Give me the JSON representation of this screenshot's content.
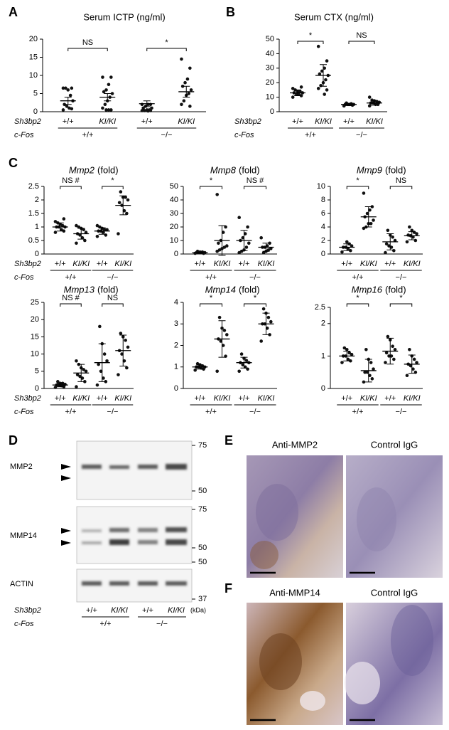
{
  "panel_labels": [
    "A",
    "B",
    "C",
    "D",
    "E",
    "F"
  ],
  "genotype": {
    "sh3bp2": "Sh3bp2",
    "c_fos": "c-Fos",
    "sh3bp2_groups": [
      "+/+",
      "KI/KI",
      "+/+",
      "KI/KI"
    ],
    "c_fos_groups": [
      "+/+",
      "−/−"
    ]
  },
  "chart_data": [
    {
      "type": "dot",
      "title": "Serum ICTP (ng/ml)",
      "ylim": [
        0,
        20
      ],
      "yticks": [
        0,
        5,
        10,
        15,
        20
      ],
      "significance": [
        "NS",
        "*"
      ],
      "groups": [
        {
          "values": [
            0.5,
            0.8,
            1,
            1.5,
            2,
            3,
            4.5,
            6,
            6.5,
            6.5,
            6.5
          ],
          "mean": 3,
          "error": 1
        },
        {
          "values": [
            9.5,
            9.5,
            7.5,
            6,
            5.5,
            5,
            4,
            3,
            2,
            1,
            0.5,
            0.5,
            0.5
          ],
          "mean": 4,
          "error": 1
        },
        {
          "values": [
            2,
            2,
            2,
            1.5,
            1,
            1,
            0.5,
            0.5,
            0.3,
            0.3,
            0.3,
            0.2
          ],
          "mean": 2.2,
          "error": 0.8
        },
        {
          "values": [
            14.5,
            12,
            9,
            8,
            7,
            6,
            5,
            4.5,
            3,
            2,
            1.5
          ],
          "mean": 5.5,
          "error": 1.5
        }
      ]
    },
    {
      "type": "dot",
      "title": "Serum CTX (ng/ml)",
      "ylim": [
        0,
        50
      ],
      "yticks": [
        0,
        10,
        20,
        30,
        40,
        50
      ],
      "significance": [
        "*",
        "NS"
      ],
      "groups": [
        {
          "values": [
            10,
            11,
            12,
            12,
            13,
            13,
            14,
            14,
            15,
            16,
            17
          ],
          "mean": 13,
          "error": 2
        },
        {
          "values": [
            45,
            35,
            30,
            28,
            26,
            25,
            22,
            20,
            18,
            16,
            15,
            12
          ],
          "mean": 25,
          "error": 7.5
        },
        {
          "values": [
            4,
            4.5,
            5,
            5,
            5,
            5,
            5.5,
            5,
            6,
            4
          ],
          "mean": 5,
          "error": 0.8
        },
        {
          "values": [
            4,
            5,
            5,
            6,
            6,
            6.5,
            7,
            7.5,
            8,
            10
          ],
          "mean": 6,
          "error": 1.5
        }
      ]
    },
    {
      "type": "dot",
      "title": "Mmp2",
      "title_unit": "(fold)",
      "ylim": [
        0,
        2.5
      ],
      "yticks": [
        0,
        0.5,
        1,
        1.5,
        2,
        2.5
      ],
      "significance": [
        "NS #",
        "*"
      ],
      "groups": [
        {
          "values": [
            0.8,
            0.85,
            0.9,
            1,
            1,
            1,
            1.05,
            1.1,
            1.15,
            1.2,
            1.3
          ],
          "mean": 1,
          "error": 0.15
        },
        {
          "values": [
            0.4,
            0.5,
            0.6,
            0.7,
            0.75,
            0.8,
            0.9,
            0.95,
            1,
            1.05
          ],
          "mean": 0.75,
          "error": 0.2
        },
        {
          "values": [
            0.65,
            0.7,
            0.8,
            0.85,
            0.85,
            0.9,
            0.9,
            0.95,
            1,
            1.05
          ],
          "mean": 0.85,
          "error": 0.12
        },
        {
          "values": [
            0.75,
            1.5,
            1.6,
            1.8,
            1.9,
            2,
            2.1,
            2.1,
            2.3
          ],
          "mean": 1.8,
          "error": 0.35
        }
      ]
    },
    {
      "type": "dot",
      "title": "Mmp8",
      "title_unit": "(fold)",
      "ylim": [
        0,
        50
      ],
      "yticks": [
        0,
        10,
        20,
        30,
        40,
        50
      ],
      "significance": [
        "*",
        "NS #"
      ],
      "groups": [
        {
          "values": [
            0.5,
            0.5,
            1,
            1,
            1,
            1,
            1.5,
            1.5,
            2
          ],
          "mean": 1,
          "error": 0.5
        },
        {
          "values": [
            44,
            20,
            16,
            10,
            8,
            6,
            5,
            4,
            3,
            2
          ],
          "mean": 10,
          "error": 11
        },
        {
          "values": [
            27,
            20,
            15,
            12,
            10,
            8,
            5,
            3,
            2,
            1
          ],
          "mean": 10,
          "error": 7.5
        },
        {
          "values": [
            12,
            8,
            6,
            5,
            5,
            4,
            3,
            2,
            1
          ],
          "mean": 5,
          "error": 3
        }
      ]
    },
    {
      "type": "dot",
      "title": "Mmp9",
      "title_unit": "(fold)",
      "ylim": [
        0,
        10
      ],
      "yticks": [
        0,
        2,
        4,
        6,
        8,
        10
      ],
      "significance": [
        "*",
        "NS"
      ],
      "groups": [
        {
          "values": [
            0.3,
            0.5,
            0.8,
            1,
            1,
            1.2,
            1.5,
            1.8
          ],
          "mean": 1,
          "error": 0.5
        },
        {
          "values": [
            9,
            7,
            6.5,
            6,
            5.5,
            5,
            4.5,
            4.5,
            4,
            3.8
          ],
          "mean": 5.5,
          "error": 1.5
        },
        {
          "values": [
            0.2,
            0.5,
            1,
            1.2,
            1.5,
            2,
            2.5,
            2.8,
            3.5
          ],
          "mean": 1.8,
          "error": 1.2
        },
        {
          "values": [
            1.8,
            2,
            2.5,
            2.7,
            2.8,
            3,
            3.2,
            3.5,
            4
          ],
          "mean": 2.7,
          "error": 0.6
        }
      ]
    },
    {
      "type": "dot",
      "title": "Mmp13",
      "title_unit": "(fold)",
      "ylim": [
        0,
        25
      ],
      "yticks": [
        0,
        5,
        10,
        15,
        20,
        25
      ],
      "significance": [
        "NS #",
        "NS"
      ],
      "groups": [
        {
          "values": [
            0.3,
            0.5,
            0.8,
            1,
            1,
            1.2,
            1.5,
            1.5,
            2
          ],
          "mean": 1,
          "error": 0.5
        },
        {
          "values": [
            0.5,
            2,
            3,
            3.5,
            4,
            5,
            5.5,
            6,
            7,
            8
          ],
          "mean": 4.5,
          "error": 2.5
        },
        {
          "values": [
            1,
            2,
            3,
            5,
            7,
            8,
            10,
            13,
            18
          ],
          "mean": 7.5,
          "error": 5.5
        },
        {
          "values": [
            4,
            6,
            8,
            10,
            11,
            12,
            14,
            15,
            16
          ],
          "mean": 11,
          "error": 4.5
        }
      ]
    },
    {
      "type": "dot",
      "title": "Mmp14",
      "title_unit": "(fold)",
      "ylim": [
        0,
        4
      ],
      "yticks": [
        0,
        1,
        2,
        3,
        4
      ],
      "significance": [
        "*",
        "*"
      ],
      "groups": [
        {
          "values": [
            0.85,
            0.9,
            0.95,
            1,
            1,
            1,
            1.05,
            1.1,
            1.15
          ],
          "mean": 1,
          "error": 0.1
        },
        {
          "values": [
            0.8,
            1.5,
            2,
            2.2,
            2.3,
            2.5,
            2.7,
            2.8,
            3.3
          ],
          "mean": 2.3,
          "error": 0.85
        },
        {
          "values": [
            0.8,
            0.9,
            1,
            1.1,
            1.2,
            1.2,
            1.3,
            1.4,
            1.6
          ],
          "mean": 1.2,
          "error": 0.25
        },
        {
          "values": [
            2.2,
            2.5,
            2.8,
            3,
            3,
            3.1,
            3.3,
            3.5,
            3.7
          ],
          "mean": 3,
          "error": 0.5
        }
      ]
    },
    {
      "type": "dot",
      "title": "Mmp16",
      "title_unit": "(fold)",
      "ylim": [
        0,
        2.5
      ],
      "yticks": [
        0,
        1,
        2,
        2.5
      ],
      "significance": [
        "*",
        "*"
      ],
      "groups": [
        {
          "values": [
            0.8,
            0.85,
            0.9,
            1,
            1,
            1.05,
            1.1,
            1.2,
            1.25
          ],
          "mean": 1,
          "error": 0.15
        },
        {
          "values": [
            0.2,
            0.3,
            0.4,
            0.5,
            0.5,
            0.6,
            0.8,
            0.9,
            1.2
          ],
          "mean": 0.55,
          "error": 0.35
        },
        {
          "values": [
            0.8,
            0.9,
            1,
            1,
            1.1,
            1.2,
            1.3,
            1.5,
            1.6
          ],
          "mean": 1.15,
          "error": 0.4
        },
        {
          "values": [
            0.4,
            0.5,
            0.6,
            0.7,
            0.75,
            0.8,
            0.9,
            1,
            1.2
          ],
          "mean": 0.75,
          "error": 0.28
        }
      ]
    }
  ],
  "blot": {
    "bands": [
      "MMP2",
      "MMP14",
      "ACTIN"
    ],
    "markers": [
      "75",
      "50",
      "75",
      "50",
      "50",
      "37"
    ],
    "unit": "(kDa)"
  },
  "histology": {
    "labels": [
      "Anti-MMP2",
      "Control IgG",
      "Anti-MMP14",
      "Control IgG"
    ]
  }
}
